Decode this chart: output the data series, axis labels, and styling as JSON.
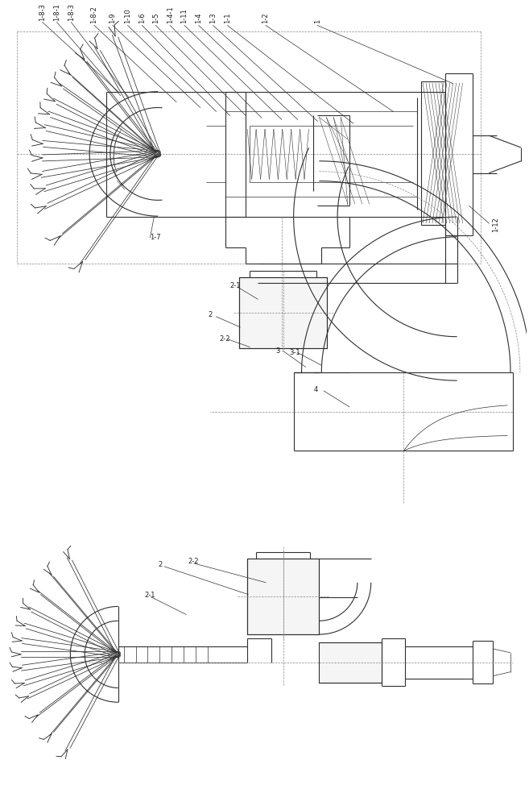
{
  "bg_color": "#ffffff",
  "lc": "#303030",
  "lc_dash": "#888888",
  "fs": 6.0
}
